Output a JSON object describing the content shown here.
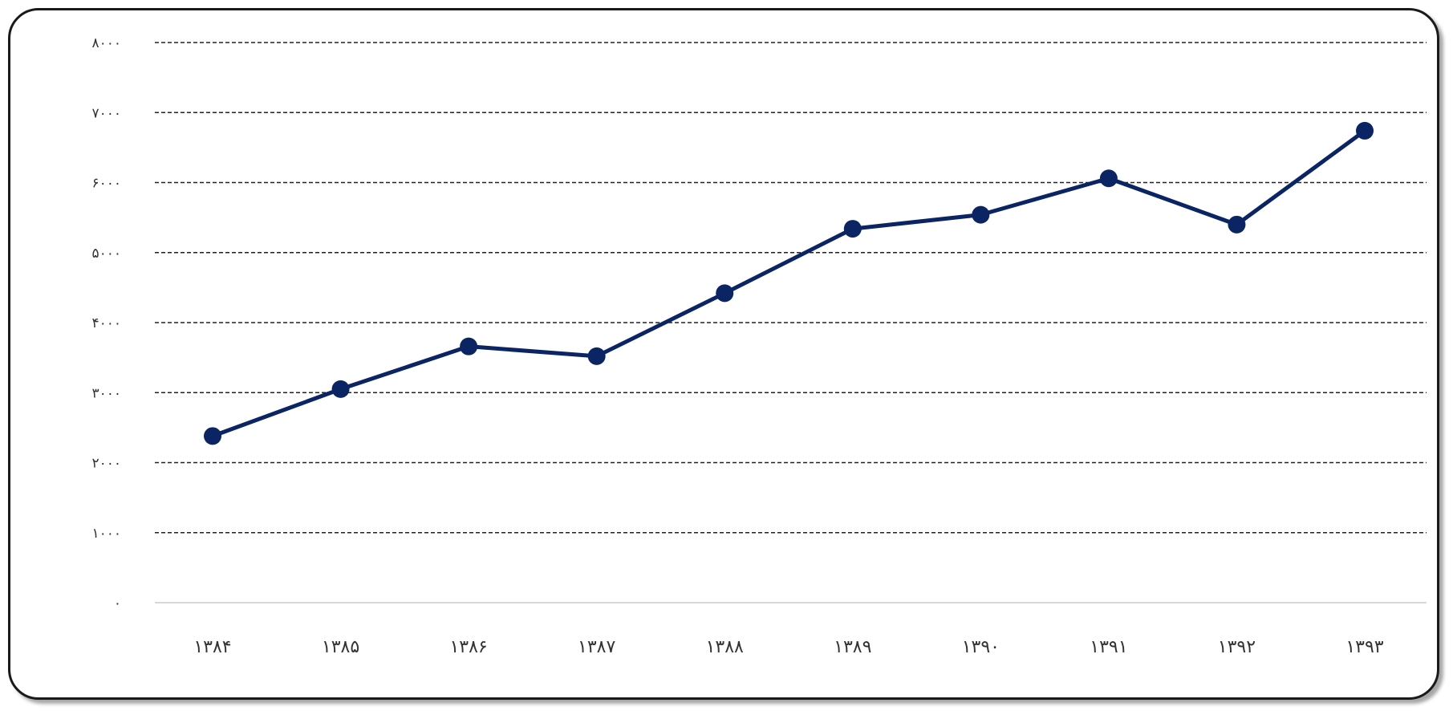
{
  "chart_data": {
    "type": "line",
    "title": "",
    "xlabel": "",
    "ylabel": "",
    "categories": [
      "۱۳۸۴",
      "۱۳۸۵",
      "۱۳۸۶",
      "۱۳۸۷",
      "۱۳۸۸",
      "۱۳۸۹",
      "۱۳۹۰",
      "۱۳۹۱",
      "۱۳۹۲",
      "۱۳۹۳"
    ],
    "series": [
      {
        "values": [
          2380,
          3050,
          3660,
          3520,
          4420,
          5340,
          5540,
          6060,
          5400,
          6740
        ]
      }
    ],
    "ylim": [
      0,
      8000
    ],
    "yticks": [
      0,
      1000,
      2000,
      3000,
      4000,
      5000,
      6000,
      7000,
      8000
    ],
    "ytick_labels": [
      "۰",
      "۱۰۰۰",
      "۲۰۰۰",
      "۳۰۰۰",
      "۴۰۰۰",
      "۵۰۰۰",
      "۶۰۰۰",
      "۷۰۰۰",
      "۸۰۰۰"
    ],
    "grid": true,
    "legend": "none",
    "line_color": "#0b2463",
    "grid_color": "#222222",
    "baseline_color": "#cccccc"
  }
}
